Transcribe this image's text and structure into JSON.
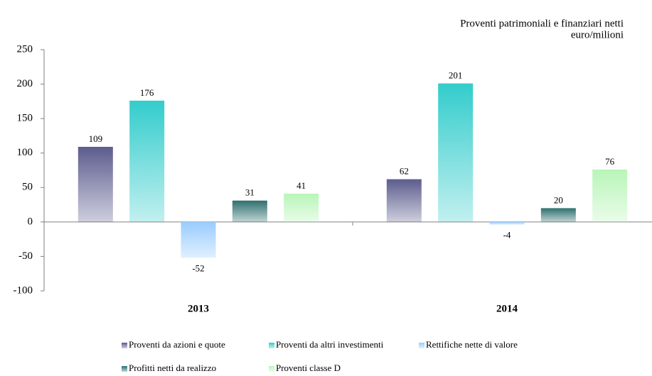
{
  "chart_data": {
    "type": "bar",
    "title": "Proventi patrimoniali e finanziari netti",
    "subtitle": "euro/milioni",
    "categories": [
      "2013",
      "2014"
    ],
    "series": [
      {
        "name": "Proventi da azioni e quote",
        "color": "#5c5c8e",
        "values": [
          109,
          62
        ]
      },
      {
        "name": "Proventi da altri investimenti",
        "color": "#33cccc",
        "values": [
          176,
          201
        ]
      },
      {
        "name": "Rettifiche nette di valore",
        "color": "#99ccff",
        "values": [
          -52,
          -4
        ]
      },
      {
        "name": "Profitti netti da realizzo",
        "color": "#2f6f6f",
        "values": [
          31,
          20
        ]
      },
      {
        "name": "Proventi classe D",
        "color": "#b8f5b8",
        "values": [
          41,
          76
        ]
      }
    ],
    "ylim": [
      -100,
      250
    ],
    "yticks": [
      -100,
      -50,
      0,
      50,
      100,
      150,
      200,
      250
    ]
  }
}
